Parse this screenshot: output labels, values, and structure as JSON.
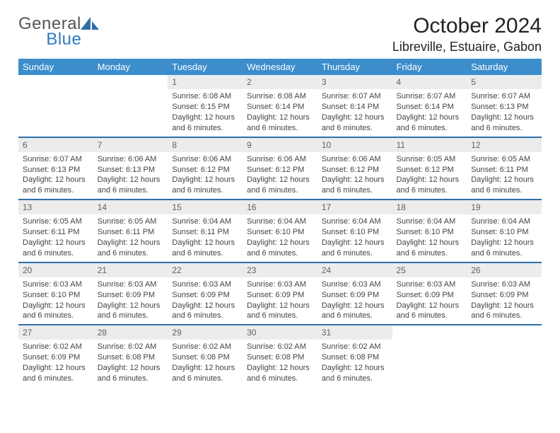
{
  "brand": {
    "word1": "General",
    "word2": "Blue"
  },
  "title": "October 2024",
  "location": "Libreville, Estuaire, Gabon",
  "colors": {
    "header_bg": "#3c8dcc",
    "header_text": "#ffffff",
    "row_border": "#2f6fa8",
    "daynum_bg": "#ececec",
    "daynum_text": "#606060",
    "body_text": "#444444",
    "brand_gray": "#555555",
    "brand_blue": "#2f7bbf"
  },
  "weekdays": [
    "Sunday",
    "Monday",
    "Tuesday",
    "Wednesday",
    "Thursday",
    "Friday",
    "Saturday"
  ],
  "weeks": [
    [
      null,
      null,
      {
        "n": "1",
        "sr": "6:08 AM",
        "ss": "6:15 PM",
        "dl": "12 hours and 6 minutes."
      },
      {
        "n": "2",
        "sr": "6:08 AM",
        "ss": "6:14 PM",
        "dl": "12 hours and 6 minutes."
      },
      {
        "n": "3",
        "sr": "6:07 AM",
        "ss": "6:14 PM",
        "dl": "12 hours and 6 minutes."
      },
      {
        "n": "4",
        "sr": "6:07 AM",
        "ss": "6:14 PM",
        "dl": "12 hours and 6 minutes."
      },
      {
        "n": "5",
        "sr": "6:07 AM",
        "ss": "6:13 PM",
        "dl": "12 hours and 6 minutes."
      }
    ],
    [
      {
        "n": "6",
        "sr": "6:07 AM",
        "ss": "6:13 PM",
        "dl": "12 hours and 6 minutes."
      },
      {
        "n": "7",
        "sr": "6:06 AM",
        "ss": "6:13 PM",
        "dl": "12 hours and 6 minutes."
      },
      {
        "n": "8",
        "sr": "6:06 AM",
        "ss": "6:12 PM",
        "dl": "12 hours and 6 minutes."
      },
      {
        "n": "9",
        "sr": "6:06 AM",
        "ss": "6:12 PM",
        "dl": "12 hours and 6 minutes."
      },
      {
        "n": "10",
        "sr": "6:06 AM",
        "ss": "6:12 PM",
        "dl": "12 hours and 6 minutes."
      },
      {
        "n": "11",
        "sr": "6:05 AM",
        "ss": "6:12 PM",
        "dl": "12 hours and 6 minutes."
      },
      {
        "n": "12",
        "sr": "6:05 AM",
        "ss": "6:11 PM",
        "dl": "12 hours and 6 minutes."
      }
    ],
    [
      {
        "n": "13",
        "sr": "6:05 AM",
        "ss": "6:11 PM",
        "dl": "12 hours and 6 minutes."
      },
      {
        "n": "14",
        "sr": "6:05 AM",
        "ss": "6:11 PM",
        "dl": "12 hours and 6 minutes."
      },
      {
        "n": "15",
        "sr": "6:04 AM",
        "ss": "6:11 PM",
        "dl": "12 hours and 6 minutes."
      },
      {
        "n": "16",
        "sr": "6:04 AM",
        "ss": "6:10 PM",
        "dl": "12 hours and 6 minutes."
      },
      {
        "n": "17",
        "sr": "6:04 AM",
        "ss": "6:10 PM",
        "dl": "12 hours and 6 minutes."
      },
      {
        "n": "18",
        "sr": "6:04 AM",
        "ss": "6:10 PM",
        "dl": "12 hours and 6 minutes."
      },
      {
        "n": "19",
        "sr": "6:04 AM",
        "ss": "6:10 PM",
        "dl": "12 hours and 6 minutes."
      }
    ],
    [
      {
        "n": "20",
        "sr": "6:03 AM",
        "ss": "6:10 PM",
        "dl": "12 hours and 6 minutes."
      },
      {
        "n": "21",
        "sr": "6:03 AM",
        "ss": "6:09 PM",
        "dl": "12 hours and 6 minutes."
      },
      {
        "n": "22",
        "sr": "6:03 AM",
        "ss": "6:09 PM",
        "dl": "12 hours and 6 minutes."
      },
      {
        "n": "23",
        "sr": "6:03 AM",
        "ss": "6:09 PM",
        "dl": "12 hours and 6 minutes."
      },
      {
        "n": "24",
        "sr": "6:03 AM",
        "ss": "6:09 PM",
        "dl": "12 hours and 6 minutes."
      },
      {
        "n": "25",
        "sr": "6:03 AM",
        "ss": "6:09 PM",
        "dl": "12 hours and 6 minutes."
      },
      {
        "n": "26",
        "sr": "6:03 AM",
        "ss": "6:09 PM",
        "dl": "12 hours and 6 minutes."
      }
    ],
    [
      {
        "n": "27",
        "sr": "6:02 AM",
        "ss": "6:09 PM",
        "dl": "12 hours and 6 minutes."
      },
      {
        "n": "28",
        "sr": "6:02 AM",
        "ss": "6:08 PM",
        "dl": "12 hours and 6 minutes."
      },
      {
        "n": "29",
        "sr": "6:02 AM",
        "ss": "6:08 PM",
        "dl": "12 hours and 6 minutes."
      },
      {
        "n": "30",
        "sr": "6:02 AM",
        "ss": "6:08 PM",
        "dl": "12 hours and 6 minutes."
      },
      {
        "n": "31",
        "sr": "6:02 AM",
        "ss": "6:08 PM",
        "dl": "12 hours and 6 minutes."
      },
      null,
      null
    ]
  ],
  "labels": {
    "sunrise": "Sunrise: ",
    "sunset": "Sunset: ",
    "daylight": "Daylight: "
  }
}
